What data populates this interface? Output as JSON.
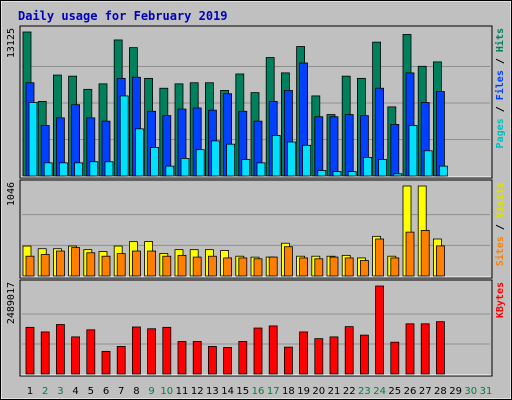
{
  "title": "Daily usage for February 2019",
  "colors": {
    "background": "#c0c0c0",
    "panel_bg": "#c0c0c0",
    "grid": "#8f8f8f",
    "title": "#0000c0",
    "weekday_label": "#000000",
    "weekend_label": "#008040",
    "hits": "#00805c",
    "files": "#0040ff",
    "pages": "#00e0ff",
    "visits": "#ffff00",
    "sites": "#ff8000",
    "kbytes": "#ff0000"
  },
  "chart_data": [
    {
      "type": "bar",
      "panel": "top",
      "max_label": "13125",
      "ylim": [
        0,
        13125
      ],
      "grid": true,
      "right_labels": [
        "Pages",
        "Files",
        "Hits"
      ],
      "categories": [
        "1",
        "2",
        "3",
        "4",
        "5",
        "6",
        "7",
        "8",
        "9",
        "10",
        "11",
        "12",
        "13",
        "14",
        "15",
        "16",
        "17",
        "18",
        "19",
        "20",
        "21",
        "22",
        "23",
        "24",
        "25",
        "26",
        "27",
        "28",
        "29",
        "30",
        "31"
      ],
      "series": [
        {
          "name": "Hits",
          "values": [
            13125,
            6800,
            9200,
            9100,
            7900,
            8400,
            12400,
            11700,
            8900,
            8000,
            8400,
            8500,
            8500,
            7800,
            9300,
            7600,
            10800,
            9400,
            11800,
            7300,
            5600,
            9100,
            8900,
            12200,
            6300,
            12900,
            10000,
            10400,
            0,
            0,
            0
          ]
        },
        {
          "name": "Files",
          "values": [
            8500,
            4600,
            5300,
            6500,
            5300,
            5000,
            8900,
            9000,
            5900,
            5500,
            6100,
            6200,
            6000,
            7500,
            5900,
            5000,
            6800,
            7800,
            10300,
            5400,
            5400,
            5600,
            5500,
            8000,
            4700,
            9400,
            6700,
            7700,
            0,
            0,
            0
          ]
        },
        {
          "name": "Pages",
          "values": [
            6700,
            1200,
            1200,
            1200,
            1300,
            1300,
            7300,
            4300,
            2600,
            900,
            1600,
            2400,
            3200,
            2900,
            1500,
            1200,
            3700,
            3100,
            2800,
            500,
            400,
            400,
            1700,
            1500,
            200,
            4600,
            2300,
            900,
            0,
            0,
            0
          ]
        }
      ]
    },
    {
      "type": "bar",
      "panel": "middle",
      "max_label": "1046",
      "ylim": [
        0,
        1046
      ],
      "grid": true,
      "right_labels": [
        "Sites",
        "Visits"
      ],
      "categories": [
        "1",
        "2",
        "3",
        "4",
        "5",
        "6",
        "7",
        "8",
        "9",
        "10",
        "11",
        "12",
        "13",
        "14",
        "15",
        "16",
        "17",
        "18",
        "19",
        "20",
        "21",
        "22",
        "23",
        "24",
        "25",
        "26",
        "27",
        "28",
        "29",
        "30",
        "31"
      ],
      "series": [
        {
          "name": "Visits",
          "values": [
            348,
            317,
            317,
            348,
            306,
            285,
            348,
            399,
            400,
            261,
            306,
            306,
            306,
            296,
            230,
            219,
            220,
            381,
            230,
            230,
            230,
            240,
            210,
            461,
            230,
            1046,
            1046,
            430,
            0,
            0,
            0
          ]
        },
        {
          "name": "Sites",
          "values": [
            230,
            250,
            290,
            330,
            270,
            230,
            260,
            290,
            290,
            230,
            240,
            220,
            230,
            210,
            210,
            200,
            220,
            340,
            210,
            200,
            220,
            210,
            180,
            430,
            210,
            510,
            530,
            350,
            0,
            0,
            0
          ]
        }
      ]
    },
    {
      "type": "bar",
      "panel": "bottom",
      "max_label": "2489017",
      "ylim": [
        0,
        2489017
      ],
      "grid": true,
      "right_labels": [
        "KBytes"
      ],
      "categories": [
        "1",
        "2",
        "3",
        "4",
        "5",
        "6",
        "7",
        "8",
        "9",
        "10",
        "11",
        "12",
        "13",
        "14",
        "15",
        "16",
        "17",
        "18",
        "19",
        "20",
        "21",
        "22",
        "23",
        "24",
        "25",
        "26",
        "27",
        "28",
        "29",
        "30",
        "31"
      ],
      "series": [
        {
          "name": "KBytes",
          "values": [
            1320000,
            1190000,
            1400000,
            1050000,
            1250000,
            640000,
            780000,
            1330000,
            1280000,
            1320000,
            920000,
            920000,
            780000,
            750000,
            920000,
            1300000,
            1360000,
            760000,
            1190000,
            1000000,
            1050000,
            1340000,
            1100000,
            2489017,
            900000,
            1420000,
            1420000,
            1480000,
            0,
            0,
            0
          ]
        }
      ]
    }
  ],
  "x_axis": {
    "labels": [
      "1",
      "2",
      "3",
      "4",
      "5",
      "6",
      "7",
      "8",
      "9",
      "10",
      "11",
      "12",
      "13",
      "14",
      "15",
      "16",
      "17",
      "18",
      "19",
      "20",
      "21",
      "22",
      "23",
      "24",
      "25",
      "26",
      "27",
      "28",
      "29",
      "30",
      "31"
    ],
    "weekend_days": [
      "2",
      "3",
      "9",
      "10",
      "16",
      "17",
      "23",
      "24",
      "30",
      "31"
    ]
  }
}
